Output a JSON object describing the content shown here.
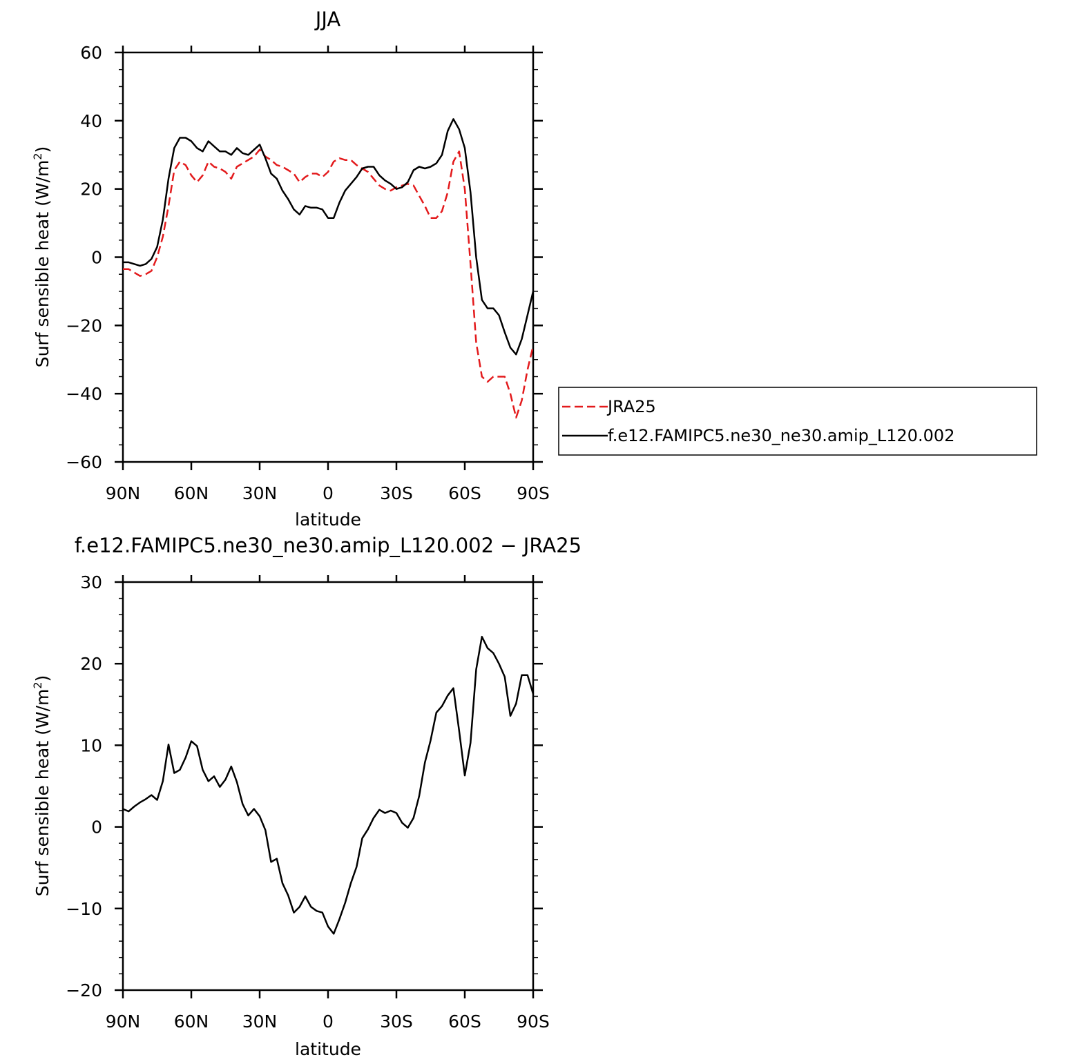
{
  "charts": [
    {
      "title": "JJA",
      "xlabel": "latitude",
      "ylabel_main": "Surf sensible heat (W/m",
      "ylabel_sup": "2",
      "ylabel_end": ")",
      "ylim": [
        -60,
        60
      ],
      "yticks": [
        {
          "value": -60,
          "label": "−60"
        },
        {
          "value": -40,
          "label": "−40"
        },
        {
          "value": -20,
          "label": "−20"
        },
        {
          "value": 0,
          "label": "0"
        },
        {
          "value": 20,
          "label": "20"
        },
        {
          "value": 40,
          "label": "40"
        },
        {
          "value": 60,
          "label": "60"
        }
      ],
      "yminor_step": 5,
      "xticks": [
        {
          "value": 90,
          "label": "90N"
        },
        {
          "value": 60,
          "label": "60N"
        },
        {
          "value": 30,
          "label": "30N"
        },
        {
          "value": 0,
          "label": "0"
        },
        {
          "value": -30,
          "label": "30S"
        },
        {
          "value": -60,
          "label": "60S"
        },
        {
          "value": -90,
          "label": "90S"
        }
      ],
      "legend": [
        {
          "label": "JRA25"
        },
        {
          "label": "f.e12.FAMIPC5.ne30_ne30.amip_L120.002"
        }
      ]
    },
    {
      "title": "f.e12.FAMIPC5.ne30_ne30.amip_L120.002 − JRA25",
      "xlabel": "latitude",
      "ylabel_main": "Surf sensible heat (W/m",
      "ylabel_sup": "2",
      "ylabel_end": ")",
      "ylim": [
        -20,
        30
      ],
      "yticks": [
        {
          "value": -20,
          "label": "−20"
        },
        {
          "value": -10,
          "label": "−10"
        },
        {
          "value": 0,
          "label": "0"
        },
        {
          "value": 10,
          "label": "10"
        },
        {
          "value": 20,
          "label": "20"
        },
        {
          "value": 30,
          "label": "30"
        }
      ],
      "yminor_step": 2,
      "xticks": [
        {
          "value": 90,
          "label": "90N"
        },
        {
          "value": 60,
          "label": "60N"
        },
        {
          "value": 30,
          "label": "30N"
        },
        {
          "value": 0,
          "label": "0"
        },
        {
          "value": -30,
          "label": "30S"
        },
        {
          "value": -60,
          "label": "60S"
        },
        {
          "value": -90,
          "label": "90S"
        }
      ]
    }
  ],
  "chart_data": [
    {
      "type": "line",
      "title": "JJA",
      "xlabel": "latitude",
      "ylabel": "Surf sensible heat (W/m2)",
      "xlim": [
        90,
        -90
      ],
      "ylim": [
        -60,
        60
      ],
      "grid": false,
      "legend_position": "right",
      "series": [
        {
          "name": "JRA25",
          "color": "#e31a1c",
          "dash": "dashed",
          "x": [
            90,
            87.5,
            85,
            82.5,
            80,
            77.5,
            75,
            72.5,
            70,
            67.5,
            65,
            62.5,
            60,
            57.5,
            55,
            52.5,
            50,
            47.5,
            45,
            42.5,
            40,
            37.5,
            35,
            32.5,
            30,
            27.5,
            25,
            22.5,
            20,
            17.5,
            15,
            12.5,
            10,
            7.5,
            5,
            2.5,
            0,
            -2.5,
            -5,
            -7.5,
            -10,
            -12.5,
            -15,
            -17.5,
            -20,
            -22.5,
            -25,
            -27.5,
            -30,
            -32.5,
            -35,
            -37.5,
            -40,
            -42.5,
            -45,
            -47.5,
            -50,
            -52.5,
            -55,
            -57.5,
            -60,
            -62.5,
            -65,
            -67.5,
            -70,
            -72.5,
            -75,
            -77.5,
            -80,
            -82.5,
            -85,
            -87.5,
            -90
          ],
          "y": [
            -3.5,
            -3.5,
            -4.5,
            -5.5,
            -5,
            -4,
            0,
            6,
            15,
            25.5,
            28,
            27,
            24,
            22,
            24,
            28,
            26.5,
            26,
            25,
            23,
            26.5,
            27.5,
            28.5,
            29.5,
            31.5,
            29.5,
            28.5,
            27,
            26.5,
            25.5,
            24.5,
            22,
            23.5,
            24.5,
            24.5,
            23.5,
            25,
            28,
            29,
            28.5,
            28.5,
            27,
            26,
            25,
            23,
            21,
            20,
            19.5,
            20.5,
            21,
            21.5,
            21,
            18,
            15,
            11.5,
            11.5,
            13.5,
            19,
            28,
            31,
            20,
            -2,
            -25,
            -35,
            -36.5,
            -35,
            -35,
            -35,
            -40,
            -47,
            -42,
            -33,
            -26
          ]
        },
        {
          "name": "f.e12.FAMIPC5.ne30_ne30.amip_L120.002",
          "color": "#000000",
          "dash": "solid",
          "x": [
            90,
            87.5,
            85,
            82.5,
            80,
            77.5,
            75,
            72.5,
            70,
            67.5,
            65,
            62.5,
            60,
            57.5,
            55,
            52.5,
            50,
            47.5,
            45,
            42.5,
            40,
            37.5,
            35,
            32.5,
            30,
            27.5,
            25,
            22.5,
            20,
            17.5,
            15,
            12.5,
            10,
            7.5,
            5,
            2.5,
            0,
            -2.5,
            -5,
            -7.5,
            -10,
            -12.5,
            -15,
            -17.5,
            -20,
            -22.5,
            -25,
            -27.5,
            -30,
            -32.5,
            -35,
            -37.5,
            -40,
            -42.5,
            -45,
            -47.5,
            -50,
            -52.5,
            -55,
            -57.5,
            -60,
            -62.5,
            -65,
            -67.5,
            -70,
            -72.5,
            -75,
            -77.5,
            -80,
            -82.5,
            -85,
            -87.5,
            -90
          ],
          "y": [
            -1.5,
            -1.5,
            -2,
            -2.5,
            -2,
            -0.5,
            3,
            11,
            23,
            32,
            35,
            35,
            34,
            32,
            31,
            34,
            32.5,
            31,
            31,
            30,
            32,
            30.5,
            30,
            31.5,
            33,
            29,
            24.5,
            23,
            19.5,
            17,
            14,
            12.5,
            15,
            14.5,
            14.5,
            14,
            11.5,
            11.5,
            16,
            19.5,
            21.5,
            23.5,
            26,
            26.5,
            26.5,
            24,
            22.5,
            21.5,
            20,
            20.5,
            22,
            25.5,
            26.5,
            26,
            26.5,
            27.5,
            30,
            37,
            40.5,
            37.5,
            32,
            19,
            0,
            -12.5,
            -15,
            -15,
            -17,
            -22,
            -26.5,
            -28.5,
            -24,
            -17,
            -10
          ]
        }
      ]
    },
    {
      "type": "line",
      "title": "f.e12.FAMIPC5.ne30_ne30.amip_L120.002 − JRA25",
      "xlabel": "latitude",
      "ylabel": "Surf sensible heat (W/m2)",
      "xlim": [
        90,
        -90
      ],
      "ylim": [
        -20,
        30
      ],
      "grid": false,
      "series": [
        {
          "color": "#000000",
          "dash": "solid",
          "x": [
            90,
            87.5,
            85,
            82.5,
            80,
            77.5,
            75,
            72.5,
            70,
            67.5,
            65,
            62.5,
            60,
            57.5,
            55,
            52.5,
            50,
            47.5,
            45,
            42.5,
            40,
            37.5,
            35,
            32.5,
            30,
            27.5,
            25,
            22.5,
            20,
            17.5,
            15,
            12.5,
            10,
            7.5,
            5,
            2.5,
            0,
            -2.5,
            -5,
            -7.5,
            -10,
            -12.5,
            -15,
            -17.5,
            -20,
            -22.5,
            -25,
            -27.5,
            -30,
            -32.5,
            -35,
            -37.5,
            -40,
            -42.5,
            -45,
            -47.5,
            -50,
            -52.5,
            -55,
            -57.5,
            -60,
            -62.5,
            -65,
            -67.5,
            -70,
            -72.5,
            -75,
            -77.5,
            -80,
            -82.5,
            -85,
            -87.5,
            -90
          ],
          "y": [
            2.2,
            1.9,
            2.5,
            3,
            3.4,
            3.9,
            3.3,
            5.6,
            10.1,
            6.6,
            7,
            8.5,
            10.5,
            9.9,
            7,
            5.6,
            6.2,
            4.9,
            5.8,
            7.4,
            5.5,
            2.8,
            1.4,
            2.2,
            1.3,
            -0.4,
            -4.3,
            -3.9,
            -6.9,
            -8.4,
            -10.5,
            -9.8,
            -8.5,
            -9.8,
            -10.3,
            -10.5,
            -12.2,
            -13.1,
            -11.3,
            -9.3,
            -6.9,
            -4.9,
            -1.4,
            -0.3,
            1.1,
            2.1,
            1.7,
            2,
            1.7,
            0.5,
            -0.1,
            1.1,
            3.8,
            7.9,
            10.6,
            14,
            14.8,
            16.1,
            17,
            11.8,
            6.3,
            10.3,
            19.3,
            23.3,
            21.9,
            21.3,
            20,
            18.4,
            13.6,
            15.1,
            18.6,
            18.6,
            16.3
          ]
        }
      ]
    }
  ]
}
